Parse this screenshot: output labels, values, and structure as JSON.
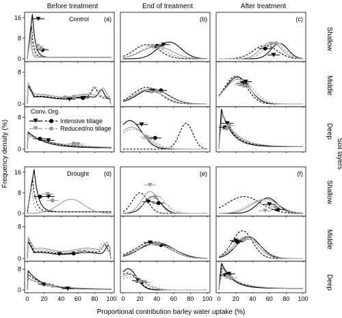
{
  "figure": {
    "column_titles": [
      "Before treatment",
      "End of treatment",
      "After treatment"
    ],
    "row_groups": [
      "Control",
      "Drought"
    ],
    "layer_labels": [
      "Shallow",
      "Middle",
      "Deep"
    ],
    "panel_letters": [
      "(a)",
      "(b)",
      "(c)",
      "(d)",
      "(e)",
      "(f)"
    ],
    "y_axis_title": "Frequency density (%)",
    "right_axis_title": "Soil layers",
    "x_axis_title": "Proportional contribution barley water uptake (%)",
    "y_ticks_shallow": [
      "0",
      "8",
      "16"
    ],
    "y_ticks_other": [
      "0",
      "8"
    ],
    "x_ticks": [
      "0",
      "20",
      "40",
      "60",
      "80",
      "100"
    ],
    "legend": {
      "header_conv": "Conv.",
      "header_org": "Org.",
      "items": [
        "Intensive tillage",
        "Reduced/no tillage"
      ]
    },
    "colors": {
      "intensive": "#000000",
      "reduced": "#999999"
    }
  },
  "chart_data": {
    "type": "line",
    "x_range": [
      0,
      100
    ],
    "y_range_shallow": [
      0,
      17
    ],
    "y_range_other": [
      0,
      10
    ],
    "series": [
      {
        "name": "Conv. Intensive tillage",
        "color": "#000000",
        "dash": "solid"
      },
      {
        "name": "Org. Intensive tillage",
        "color": "#000000",
        "dash": "dashed"
      },
      {
        "name": "Conv. Reduced/no tillage",
        "color": "#999999",
        "dash": "solid"
      },
      {
        "name": "Org. Reduced/no tillage",
        "color": "#999999",
        "dash": "dashed"
      }
    ],
    "panels": [
      {
        "letter": "(a)",
        "row": 0,
        "col": 0,
        "curves": [
          {
            "shape": "skew",
            "peak": 6,
            "height": 17,
            "tail": 0.3
          },
          {
            "shape": "skew",
            "peak": 5,
            "height": 12,
            "tail": 0.4
          },
          {
            "shape": "skew",
            "peak": 4,
            "height": 9,
            "tail": 0.8
          },
          {
            "shape": "skew",
            "peak": 5,
            "height": 8,
            "tail": 0.6
          }
        ],
        "markers": [
          {
            "x": 13,
            "y": 15.5
          },
          {
            "x": 18,
            "y": 3.5
          },
          {
            "x": 12,
            "y": 5
          },
          {
            "x": 16,
            "y": 4
          }
        ]
      },
      {
        "letter": "(a-mid)",
        "row": 1,
        "col": 0,
        "curves": [
          {
            "shape": "flat",
            "level": 1.8,
            "bump": 88
          },
          {
            "shape": "flat",
            "level": 2.0,
            "bump": 80
          },
          {
            "shape": "flat",
            "level": 2.4,
            "bump": 90
          },
          {
            "shape": "flat",
            "level": 2.5,
            "bump": 80
          }
        ],
        "markers": [
          {
            "x": 50,
            "y": 1.2
          },
          {
            "x": 66,
            "y": 1.5
          },
          {
            "x": 45,
            "y": 1.6
          },
          {
            "x": 55,
            "y": 1.8
          }
        ]
      },
      {
        "letter": "(a-deep)",
        "row": 2,
        "col": 0,
        "curves": [
          {
            "shape": "decay",
            "start": 4.2,
            "rate": 0.05
          },
          {
            "shape": "decay",
            "start": 4.0,
            "rate": 0.04
          },
          {
            "shape": "decay",
            "start": 3.4,
            "rate": 0.03
          },
          {
            "shape": "decay",
            "start": 3.0,
            "rate": 0.03
          }
        ],
        "markers": [
          {
            "x": 25,
            "y": 2.2
          },
          {
            "x": 15,
            "y": 2.6
          },
          {
            "x": 60,
            "y": 1.2
          },
          {
            "x": 55,
            "y": 1.4
          }
        ]
      },
      {
        "letter": "(b)",
        "row": 0,
        "col": 1,
        "curves": [
          {
            "shape": "peak",
            "mu": 55,
            "sigma": 14,
            "height": 6.5
          },
          {
            "shape": "peak",
            "mu": 28,
            "sigma": 15,
            "height": 5.5
          },
          {
            "shape": "peak",
            "mu": 40,
            "sigma": 18,
            "height": 4.8
          },
          {
            "shape": "peak",
            "mu": 35,
            "sigma": 16,
            "height": 4.6
          }
        ],
        "markers": [
          {
            "x": 48,
            "y": 5.5
          },
          {
            "x": 40,
            "y": 5
          },
          {
            "x": 42,
            "y": 4
          },
          {
            "x": 35,
            "y": 5
          }
        ]
      },
      {
        "letter": "(b-mid)",
        "row": 1,
        "col": 1,
        "curves": [
          {
            "shape": "peak",
            "mu": 35,
            "sigma": 18,
            "height": 3.8
          },
          {
            "shape": "peak",
            "mu": 28,
            "sigma": 16,
            "height": 4.2
          },
          {
            "shape": "peak",
            "mu": 30,
            "sigma": 17,
            "height": 3.6
          },
          {
            "shape": "peak",
            "mu": 34,
            "sigma": 18,
            "height": 3.9
          }
        ],
        "markers": [
          {
            "x": 35,
            "y": 3.2
          },
          {
            "x": 45,
            "y": 3.4
          },
          {
            "x": 33,
            "y": 3.0
          },
          {
            "x": 40,
            "y": 3.2
          }
        ]
      },
      {
        "letter": "(b-deep)",
        "row": 2,
        "col": 1,
        "curves": [
          {
            "shape": "peak",
            "mu": 8,
            "sigma": 14,
            "height": 7.2
          },
          {
            "shape": "peak",
            "mu": 75,
            "sigma": 8,
            "height": 6.5
          },
          {
            "shape": "peak",
            "mu": 10,
            "sigma": 16,
            "height": 5.5
          },
          {
            "shape": "peak",
            "mu": 12,
            "sigma": 18,
            "height": 5.0
          }
        ],
        "markers": [
          {
            "x": 22,
            "y": 6.2
          },
          {
            "x": 38,
            "y": 2.8
          },
          {
            "x": 28,
            "y": 3.0
          },
          {
            "x": 30,
            "y": 2.6
          }
        ]
      },
      {
        "letter": "(c)",
        "row": 0,
        "col": 2,
        "curves": [
          {
            "shape": "peak",
            "mu": 72,
            "sigma": 10,
            "height": 6.0
          },
          {
            "shape": "peak",
            "mu": 55,
            "sigma": 14,
            "height": 5.2
          },
          {
            "shape": "peak",
            "mu": 62,
            "sigma": 12,
            "height": 6.5
          },
          {
            "shape": "peak",
            "mu": 66,
            "sigma": 12,
            "height": 6.0
          }
        ],
        "markers": [
          {
            "x": 65,
            "y": 1.5
          },
          {
            "x": 55,
            "y": 4
          },
          {
            "x": 62,
            "y": 5.5
          },
          {
            "x": 68,
            "y": 6
          }
        ]
      },
      {
        "letter": "(c-mid)",
        "row": 1,
        "col": 2,
        "curves": [
          {
            "shape": "peak",
            "mu": 22,
            "sigma": 14,
            "height": 6.8
          },
          {
            "shape": "peak",
            "mu": 20,
            "sigma": 13,
            "height": 7.0
          },
          {
            "shape": "peak",
            "mu": 22,
            "sigma": 15,
            "height": 6.2
          },
          {
            "shape": "peak",
            "mu": 24,
            "sigma": 16,
            "height": 6.4
          }
        ],
        "markers": [
          {
            "x": 32,
            "y": 5.6
          },
          {
            "x": 28,
            "y": 5.2
          },
          {
            "x": 26,
            "y": 4.8
          },
          {
            "x": 30,
            "y": 4.6
          }
        ]
      },
      {
        "letter": "(c-deep)",
        "row": 2,
        "col": 2,
        "curves": [
          {
            "shape": "skew",
            "peak": 3,
            "height": 9.5,
            "tail": 0.08
          },
          {
            "shape": "skew",
            "peak": 3,
            "height": 9.0,
            "tail": 0.07
          },
          {
            "shape": "skew",
            "peak": 4,
            "height": 8.5,
            "tail": 0.06
          },
          {
            "shape": "skew",
            "peak": 4,
            "height": 8.0,
            "tail": 0.06
          }
        ],
        "markers": [
          {
            "x": 10,
            "y": 6.5
          },
          {
            "x": 7,
            "y": 5.5
          },
          {
            "x": 9,
            "y": 5.0
          },
          {
            "x": 12,
            "y": 6.0
          }
        ]
      },
      {
        "letter": "(d)",
        "row": 3,
        "col": 0,
        "curves": [
          {
            "shape": "skew",
            "peak": 8,
            "height": 16.5,
            "tail": 0.2
          },
          {
            "shape": "skew",
            "peak": 6,
            "height": 13,
            "tail": 0.25
          },
          {
            "shape": "peak",
            "mu": 52,
            "sigma": 15,
            "height": 5.5
          },
          {
            "shape": "skew",
            "peak": 5,
            "height": 10,
            "tail": 0.4
          }
        ],
        "markers": [
          {
            "x": 25,
            "y": 6.5
          },
          {
            "x": 15,
            "y": 6.5
          },
          {
            "x": 24,
            "y": 7.5
          },
          {
            "x": 30,
            "y": 5.0
          }
        ]
      },
      {
        "letter": "(d-mid)",
        "row": 4,
        "col": 0,
        "curves": [
          {
            "shape": "flat",
            "level": 1.5,
            "bump": 96
          },
          {
            "shape": "flat",
            "level": 1.8,
            "bump": 92
          },
          {
            "shape": "flat",
            "level": 2.6,
            "bump": 94
          },
          {
            "shape": "flat",
            "level": 2.2,
            "bump": 90
          }
        ],
        "markers": [
          {
            "x": 38,
            "y": 1.1
          },
          {
            "x": 55,
            "y": 1.3
          },
          {
            "x": 62,
            "y": 1.6
          },
          {
            "x": 68,
            "y": 1.7
          }
        ]
      },
      {
        "letter": "(d-deep)",
        "row": 5,
        "col": 0,
        "curves": [
          {
            "shape": "decay",
            "start": 7.5,
            "rate": 0.06
          },
          {
            "shape": "decay",
            "start": 6.0,
            "rate": 0.05
          },
          {
            "shape": "decay",
            "start": 4.5,
            "rate": 0.04
          },
          {
            "shape": "decay",
            "start": 4.0,
            "rate": 0.035
          }
        ],
        "markers": [
          {
            "x": 48,
            "y": 0.5
          },
          {
            "x": 20,
            "y": 2.2
          },
          {
            "x": 24,
            "y": 1.8
          },
          {
            "x": 30,
            "y": 1.6
          }
        ]
      },
      {
        "letter": "(e)",
        "row": 3,
        "col": 1,
        "curves": [
          {
            "shape": "peak",
            "mu": 35,
            "sigma": 10,
            "height": 6.5
          },
          {
            "shape": "peak",
            "mu": 20,
            "sigma": 9,
            "height": 8.0
          },
          {
            "shape": "peak",
            "mu": 32,
            "sigma": 10,
            "height": 8.5
          },
          {
            "shape": "peak",
            "mu": 38,
            "sigma": 12,
            "height": 7.0
          }
        ],
        "markers": [
          {
            "x": 30,
            "y": 4.5
          },
          {
            "x": 42,
            "y": 4.0
          },
          {
            "x": 32,
            "y": 11.0
          },
          {
            "x": 38,
            "y": 6.5
          }
        ]
      },
      {
        "letter": "(e-mid)",
        "row": 4,
        "col": 1,
        "curves": [
          {
            "shape": "peak",
            "mu": 40,
            "sigma": 20,
            "height": 4.0
          },
          {
            "shape": "peak",
            "mu": 35,
            "sigma": 20,
            "height": 4.2
          },
          {
            "shape": "peak",
            "mu": 36,
            "sigma": 20,
            "height": 3.8
          },
          {
            "shape": "peak",
            "mu": 40,
            "sigma": 22,
            "height": 3.6
          }
        ],
        "markers": [
          {
            "x": 32,
            "y": 4.0
          },
          {
            "x": 45,
            "y": 3.4
          },
          {
            "x": 38,
            "y": 3.6
          },
          {
            "x": 42,
            "y": 3.8
          }
        ]
      },
      {
        "letter": "(e-deep)",
        "row": 5,
        "col": 1,
        "curves": [
          {
            "shape": "peak",
            "mu": 6,
            "sigma": 10,
            "height": 8.2
          },
          {
            "shape": "peak",
            "mu": 5,
            "sigma": 12,
            "height": 6.5
          },
          {
            "shape": "peak",
            "mu": 8,
            "sigma": 14,
            "height": 6.0
          },
          {
            "shape": "peak",
            "mu": 10,
            "sigma": 16,
            "height": 5.0
          }
        ],
        "markers": [
          {
            "x": 18,
            "y": 3.6
          },
          {
            "x": 22,
            "y": 3.0
          },
          {
            "x": 26,
            "y": 3.0
          },
          {
            "x": 20,
            "y": 3.4
          }
        ]
      },
      {
        "letter": "(f)",
        "row": 3,
        "col": 2,
        "curves": [
          {
            "shape": "peak",
            "mu": 58,
            "sigma": 12,
            "height": 6.0
          },
          {
            "shape": "peak",
            "mu": 30,
            "sigma": 20,
            "height": 6.5
          },
          {
            "shape": "peak",
            "mu": 55,
            "sigma": 16,
            "height": 5.5
          },
          {
            "shape": "peak",
            "mu": 50,
            "sigma": 16,
            "height": 5.0
          }
        ],
        "markers": [
          {
            "x": 60,
            "y": 3.5
          },
          {
            "x": 70,
            "y": 1.5
          },
          {
            "x": 55,
            "y": 1.0
          },
          {
            "x": 68,
            "y": 2.5
          }
        ]
      },
      {
        "letter": "(f-mid)",
        "row": 4,
        "col": 2,
        "curves": [
          {
            "shape": "peak",
            "mu": 35,
            "sigma": 14,
            "height": 5.5
          },
          {
            "shape": "peak",
            "mu": 28,
            "sigma": 12,
            "height": 7.0
          },
          {
            "shape": "peak",
            "mu": 32,
            "sigma": 14,
            "height": 5.5
          },
          {
            "shape": "peak",
            "mu": 35,
            "sigma": 16,
            "height": 4.8
          }
        ],
        "markers": [
          {
            "x": 20,
            "y": 4.5
          },
          {
            "x": 22,
            "y": 4.2
          },
          {
            "x": 34,
            "y": 5.2
          },
          {
            "x": 30,
            "y": 4.8
          }
        ]
      },
      {
        "letter": "(f-deep)",
        "row": 5,
        "col": 2,
        "curves": [
          {
            "shape": "skew",
            "peak": 3,
            "height": 10,
            "tail": 0.08
          },
          {
            "shape": "skew",
            "peak": 4,
            "height": 9,
            "tail": 0.07
          },
          {
            "shape": "skew",
            "peak": 4,
            "height": 8,
            "tail": 0.06
          },
          {
            "shape": "skew",
            "peak": 5,
            "height": 7.5,
            "tail": 0.06
          }
        ],
        "markers": [
          {
            "x": 12,
            "y": 6.2
          },
          {
            "x": 8,
            "y": 5.8
          },
          {
            "x": 10,
            "y": 5.2
          },
          {
            "x": 14,
            "y": 4.6
          }
        ]
      }
    ]
  }
}
